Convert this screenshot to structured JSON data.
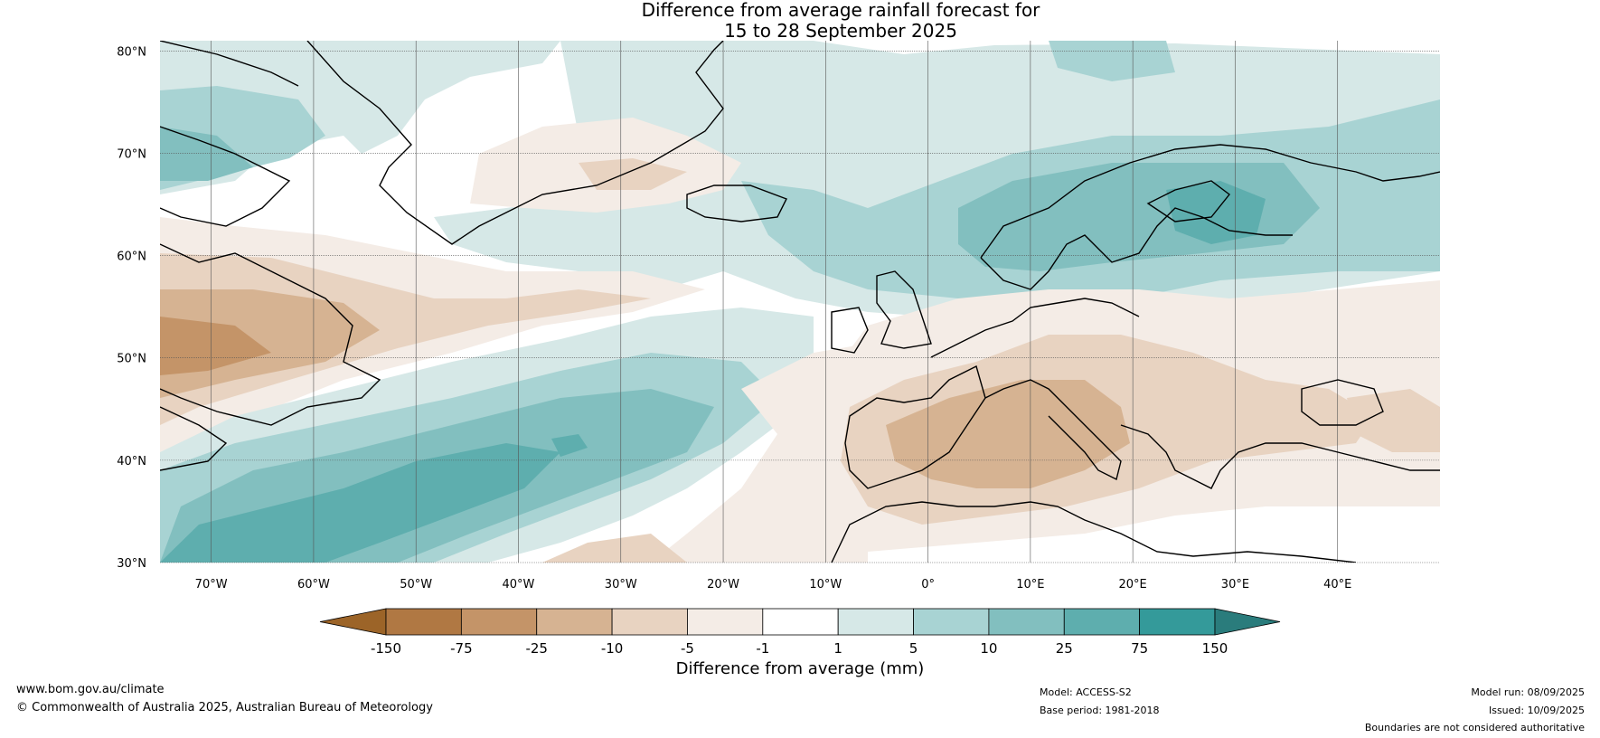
{
  "title": {
    "line1": "Difference from average rainfall forecast for",
    "line2": "15 to 28 September 2025"
  },
  "map": {
    "lat_labels": [
      "80°N",
      "70°N",
      "60°N",
      "50°N",
      "40°N",
      "30°N"
    ],
    "lon_labels": [
      "70°W",
      "60°W",
      "50°W",
      "40°W",
      "30°W",
      "20°W",
      "10°W",
      "0°",
      "10°E",
      "20°E",
      "30°E",
      "40°E"
    ]
  },
  "legend": {
    "tick_labels": [
      "-150",
      "-75",
      "-25",
      "-10",
      "-5",
      "-1",
      "1",
      "5",
      "10",
      "25",
      "75",
      "150"
    ],
    "colors": [
      "#9c6428",
      "#b07843",
      "#c49468",
      "#d6b392",
      "#e8d3c1",
      "#f4ece6",
      "#ffffff",
      "#d6e8e7",
      "#a8d3d3",
      "#82bfbf",
      "#5eaeae",
      "#349a9a",
      "#2a7c7c"
    ],
    "label": "Difference from average (mm)"
  },
  "footer": {
    "website": "www.bom.gov.au/climate",
    "copyright": "© Commonwealth of Australia 2025, Australian Bureau of Meteorology",
    "model": "Model: ACCESS-S2",
    "base_period": "Base period: 1981-2018",
    "model_run": "Model run: 08/09/2025",
    "issued": "Issued: 10/09/2025",
    "disclaimer": "Boundaries are not considered authoritative"
  }
}
